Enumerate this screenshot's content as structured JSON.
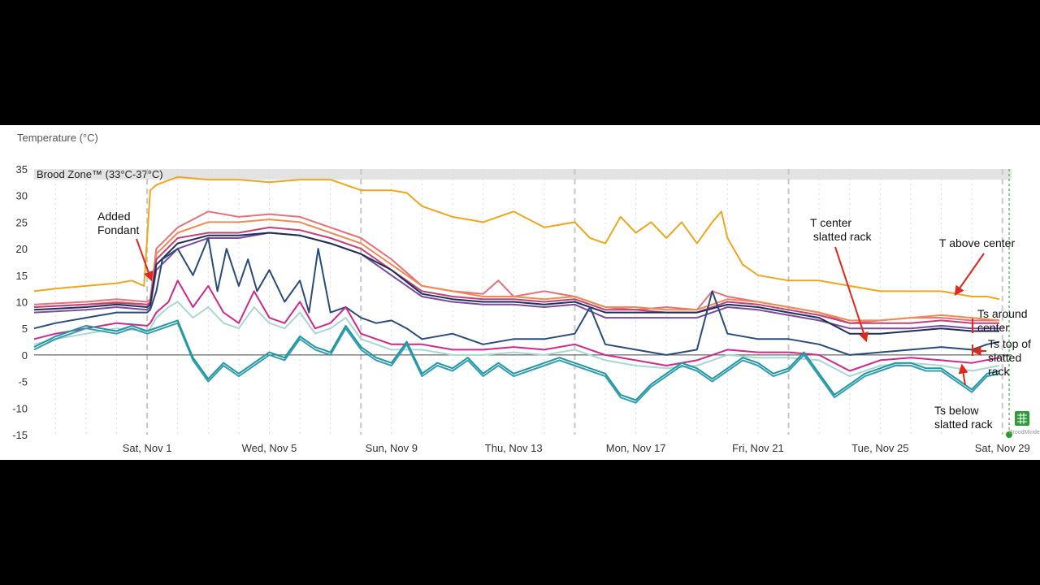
{
  "chart_data": {
    "type": "line",
    "ylabel": "Temperature (°C)",
    "ylim": [
      -15,
      35
    ],
    "yticks": [
      35,
      30,
      25,
      20,
      15,
      10,
      5,
      0,
      -5,
      -10,
      -15
    ],
    "xlim": [
      -3.7,
      28.3
    ],
    "xticks": [
      {
        "x": 0,
        "label": "Sat, Nov 1"
      },
      {
        "x": 4,
        "label": "Wed, Nov 5"
      },
      {
        "x": 8,
        "label": "Sun, Nov 9"
      },
      {
        "x": 12,
        "label": "Thu, Nov 13"
      },
      {
        "x": 16,
        "label": "Mon, Nov 17"
      },
      {
        "x": 20,
        "label": "Fri, Nov 21"
      },
      {
        "x": 24,
        "label": "Tue, Nov 25"
      },
      {
        "x": 28,
        "label": "Sat, Nov 29"
      }
    ],
    "band": {
      "label": "Brood Zone™ (33°C-37°C)",
      "from": 33,
      "to": 37,
      "color": "#e3e3e3"
    },
    "grid": true,
    "series": [
      {
        "color": "#f0a61c",
        "x": [
          -3.7,
          -3,
          -2,
          -1,
          -0.5,
          -0.1,
          0.1,
          0.3,
          1,
          2,
          3,
          4,
          5,
          6,
          7,
          8,
          8.5,
          9,
          10,
          11,
          12,
          13,
          14,
          14.5,
          15,
          15.5,
          16,
          16.5,
          17,
          17.5,
          18,
          18.5,
          18.8,
          19,
          19.5,
          20,
          21,
          22,
          23,
          24,
          25,
          26,
          27,
          27.5,
          27.9
        ],
        "y": [
          12,
          12.5,
          13,
          13.5,
          14,
          13,
          31,
          32,
          33.5,
          33,
          33,
          32.5,
          33,
          33,
          31,
          31,
          30.5,
          28,
          26,
          25,
          27,
          24,
          25,
          22,
          21,
          26,
          23,
          25,
          22,
          25,
          21,
          25,
          27,
          22,
          17,
          15,
          14,
          14,
          13,
          12,
          12,
          12,
          11,
          11,
          10.5
        ]
      },
      {
        "color": "#e8707a",
        "x": [
          -3.7,
          -2,
          -1,
          0,
          0.1,
          0.3,
          1,
          2,
          3,
          4,
          5,
          6,
          6.5,
          7,
          8,
          9,
          10,
          11,
          11.5,
          12,
          13,
          14,
          15,
          16,
          17,
          18,
          18.5,
          19,
          20,
          21,
          22,
          23,
          24,
          25,
          26,
          27,
          27.9
        ],
        "y": [
          9.5,
          10,
          10.5,
          10,
          10.5,
          20,
          24,
          27,
          26,
          26.5,
          26,
          24,
          23,
          22,
          18,
          13,
          12,
          11.5,
          14,
          11,
          12,
          11,
          9,
          8.5,
          9,
          8.5,
          12,
          11,
          10,
          9,
          8,
          6,
          6.5,
          7,
          7,
          6.5,
          6.5
        ]
      },
      {
        "color": "#f08a50",
        "x": [
          -3.7,
          -2,
          -1,
          0,
          0.1,
          0.3,
          1,
          2,
          3,
          4,
          5,
          6,
          7,
          8,
          9,
          10,
          11,
          12,
          13,
          14,
          15,
          16,
          17,
          18,
          19,
          20,
          21,
          22,
          23,
          24,
          25,
          26,
          27,
          27.9
        ],
        "y": [
          9,
          9.5,
          10,
          9.5,
          10,
          19,
          23,
          25,
          25,
          25.5,
          25,
          23,
          21,
          17,
          13,
          12,
          11,
          11,
          10.5,
          11,
          9,
          9,
          8.5,
          8.5,
          10.5,
          10,
          9,
          8,
          6.5,
          6.5,
          7,
          7.5,
          7,
          6.5
        ]
      },
      {
        "color": "#c2407a",
        "x": [
          -3.7,
          -2,
          -1,
          0,
          0.1,
          0.3,
          1,
          2,
          3,
          4,
          5,
          6,
          7,
          8,
          9,
          10,
          11,
          12,
          13,
          14,
          15,
          16,
          17,
          18,
          19,
          20,
          21,
          22,
          23,
          24,
          25,
          26,
          27,
          27.9
        ],
        "y": [
          9,
          9.5,
          9.8,
          9.5,
          9.8,
          18,
          22,
          23,
          23,
          24,
          23.5,
          22,
          20,
          16,
          12,
          11,
          10.5,
          10.5,
          10,
          10.5,
          8.5,
          8.5,
          8,
          8,
          10,
          9.5,
          8.5,
          7.5,
          6,
          6,
          6,
          6.5,
          6,
          6
        ]
      },
      {
        "color": "#7a4aa0",
        "x": [
          -3.7,
          -2,
          -1,
          0,
          0.1,
          0.3,
          1,
          2,
          3,
          4,
          5,
          6,
          7,
          8,
          9,
          10,
          11,
          12,
          13,
          14,
          15,
          16,
          17,
          18,
          19,
          20,
          21,
          22,
          23,
          24,
          25,
          26,
          27,
          27.9
        ],
        "y": [
          8,
          8.5,
          9,
          8.5,
          9,
          16,
          20,
          22,
          22,
          23,
          22.5,
          21,
          19,
          15,
          11,
          10,
          9.5,
          9.5,
          9,
          9.5,
          7,
          7,
          7,
          7,
          9,
          8.5,
          7.5,
          6.5,
          5,
          5,
          5,
          5.5,
          5,
          5
        ]
      },
      {
        "color": "#1e2f5a",
        "x": [
          -3.7,
          -2,
          -1,
          0,
          0.1,
          0.3,
          1,
          2,
          3,
          4,
          5,
          6,
          7,
          8,
          9,
          10,
          11,
          12,
          13,
          14,
          15,
          16,
          17,
          18,
          19,
          20,
          21,
          22,
          23,
          24,
          25,
          26,
          27,
          27.9
        ],
        "y": [
          8.5,
          9,
          9.5,
          9,
          9.5,
          17,
          21,
          22.5,
          22.5,
          23,
          22.5,
          21,
          19,
          16,
          11.5,
          10.5,
          10,
          10,
          9.5,
          10,
          8,
          8,
          8,
          8,
          9.5,
          9,
          8,
          7,
          4,
          4,
          4.5,
          5,
          4.5,
          4.5
        ]
      },
      {
        "color": "#2a4a7a",
        "x": [
          -3.7,
          -3,
          -2,
          -1,
          0,
          0.1,
          0.3,
          0.5,
          1,
          1.5,
          2,
          2.3,
          2.6,
          3,
          3.3,
          3.6,
          4,
          4.5,
          5,
          5.3,
          5.6,
          6,
          6.5,
          7,
          7.5,
          8,
          8.5,
          9,
          10,
          11,
          12,
          13,
          14,
          14.5,
          15,
          16,
          17,
          18,
          18.5,
          19,
          20,
          21,
          22,
          23,
          24,
          25,
          26,
          27,
          27.5,
          27.9
        ],
        "y": [
          5,
          6,
          7,
          8,
          8,
          8.5,
          12,
          18,
          20,
          15,
          22,
          12,
          20,
          13,
          18,
          12,
          16,
          10,
          14,
          8,
          20,
          8,
          9,
          7,
          6,
          6.5,
          5,
          3,
          4,
          2,
          3,
          3,
          4,
          9,
          2,
          1,
          0,
          1,
          12,
          4,
          3,
          3,
          2,
          0,
          0.5,
          1,
          1.5,
          1,
          2,
          2.5
        ]
      },
      {
        "color": "#d0288a",
        "x": [
          -3.7,
          -3,
          -2,
          -1,
          0,
          0.1,
          0.3,
          0.7,
          1,
          1.5,
          2,
          2.5,
          3,
          3.5,
          4,
          4.5,
          5,
          5.5,
          6,
          6.5,
          7,
          8,
          9,
          10,
          11,
          12,
          13,
          14,
          15,
          16,
          17,
          18,
          19,
          20,
          21,
          22,
          23,
          24,
          25,
          26,
          27,
          27.9
        ],
        "y": [
          3,
          4,
          5,
          6,
          5.5,
          6,
          8,
          10,
          14,
          9,
          13,
          8,
          6,
          12,
          7,
          6,
          10,
          5,
          6,
          9,
          4,
          2,
          2,
          1,
          1,
          1.5,
          1,
          2,
          0,
          -1,
          -2,
          -1,
          1,
          0.5,
          0.5,
          0,
          -3,
          -1,
          -0.5,
          -1,
          -1.5,
          -0.5
        ]
      },
      {
        "color": "#a8d8d0",
        "x": [
          -3.7,
          -3,
          -2,
          -1,
          0,
          0.1,
          0.3,
          0.7,
          1,
          1.5,
          2,
          2.5,
          3,
          3.5,
          4,
          4.5,
          5,
          5.5,
          6,
          6.5,
          7,
          8,
          9,
          10,
          11,
          12,
          13,
          14,
          15,
          16,
          17,
          18,
          19,
          20,
          21,
          22,
          23,
          24,
          25,
          26,
          27,
          27.9
        ],
        "y": [
          2,
          3,
          4,
          5,
          4.5,
          5,
          7,
          9,
          10,
          7,
          9,
          6,
          5,
          9,
          6,
          5,
          8,
          4,
          5,
          7,
          3,
          1,
          1,
          0,
          0,
          0.5,
          0,
          1,
          -1,
          -2,
          -2.5,
          -2,
          0,
          -0.5,
          -0.5,
          -1,
          -4,
          -2,
          -1.5,
          -2,
          -3,
          -2
        ]
      },
      {
        "color": "#3a9ab8",
        "x": [
          -3.7,
          -3,
          -2,
          -1,
          -0.5,
          0,
          0.5,
          1,
          1.5,
          2,
          2.5,
          3,
          3.5,
          4,
          4.5,
          5,
          5.5,
          6,
          6.5,
          7,
          7.5,
          8,
          8.5,
          9,
          9.5,
          10,
          10.5,
          11,
          11.5,
          12,
          12.5,
          13,
          13.5,
          14,
          14.5,
          15,
          15.5,
          16,
          16.5,
          17,
          17.5,
          18,
          18.5,
          19,
          19.5,
          20,
          20.5,
          21,
          21.5,
          22,
          22.5,
          23,
          23.5,
          24,
          24.5,
          25,
          25.5,
          26,
          26.5,
          27,
          27.5,
          27.9
        ],
        "y": [
          1,
          3,
          5,
          4,
          5,
          4,
          5,
          6,
          -1,
          -5,
          -2,
          -4,
          -2,
          0,
          -1,
          3,
          1,
          0,
          5,
          1,
          -1,
          -2,
          2,
          -4,
          -2,
          -3,
          -1,
          -4,
          -2,
          -4,
          -3,
          -2,
          -1,
          -2,
          -3,
          -4,
          -8,
          -9,
          -6,
          -4,
          -2,
          -3,
          -5,
          -3,
          -1,
          -2,
          -4,
          -3,
          0,
          -4,
          -8,
          -6,
          -4,
          -3,
          -2,
          -2,
          -3,
          -3,
          -5,
          -7,
          -4,
          -3.5
        ]
      },
      {
        "color": "#1a9a9a",
        "x": [
          -3.7,
          -3,
          -2,
          -1,
          -0.5,
          0,
          0.5,
          1,
          1.5,
          2,
          2.5,
          3,
          3.5,
          4,
          4.5,
          5,
          5.5,
          6,
          6.5,
          7,
          7.5,
          8,
          8.5,
          9,
          9.5,
          10,
          10.5,
          11,
          11.5,
          12,
          12.5,
          13,
          13.5,
          14,
          14.5,
          15,
          15.5,
          16,
          16.5,
          17,
          17.5,
          18,
          18.5,
          19,
          19.5,
          20,
          20.5,
          21,
          21.5,
          22,
          22.5,
          23,
          23.5,
          24,
          24.5,
          25,
          25.5,
          26,
          26.5,
          27,
          27.5,
          27.9
        ],
        "y": [
          1.5,
          3.5,
          5.5,
          4.5,
          5.5,
          4.5,
          5.5,
          6.5,
          -0.5,
          -4.5,
          -1.5,
          -3.5,
          -1.5,
          0.5,
          -0.5,
          3.5,
          1.5,
          0.5,
          5.5,
          1.5,
          -0.5,
          -1.5,
          2.5,
          -3.5,
          -1.5,
          -2.5,
          -0.5,
          -3.5,
          -1.5,
          -3.5,
          -2.5,
          -1.5,
          -0.5,
          -1.5,
          -2.5,
          -3.5,
          -7.5,
          -8.5,
          -5.5,
          -3.5,
          -1.5,
          -2.5,
          -4.5,
          -2.5,
          -0.5,
          -1.5,
          -3.5,
          -2.5,
          0.5,
          -3.5,
          -7.5,
          -5.5,
          -3.5,
          -2.5,
          -1.5,
          -1.5,
          -2.5,
          -2.5,
          -4.5,
          -6.5,
          -3.5,
          -3
        ]
      }
    ],
    "annotations": [
      {
        "lines": [
          "Added",
          "Fondant"
        ]
      },
      {
        "lines": [
          "T center",
          " slatted rack"
        ]
      },
      {
        "lines": [
          "T above center"
        ]
      },
      {
        "lines": [
          "Ts around",
          "center"
        ]
      },
      {
        "lines": [
          "Ts top of",
          "slatted",
          "rack"
        ]
      },
      {
        "lines": [
          "Ts below",
          "slatted rack"
        ]
      }
    ],
    "watermark": "BroodMinder"
  }
}
